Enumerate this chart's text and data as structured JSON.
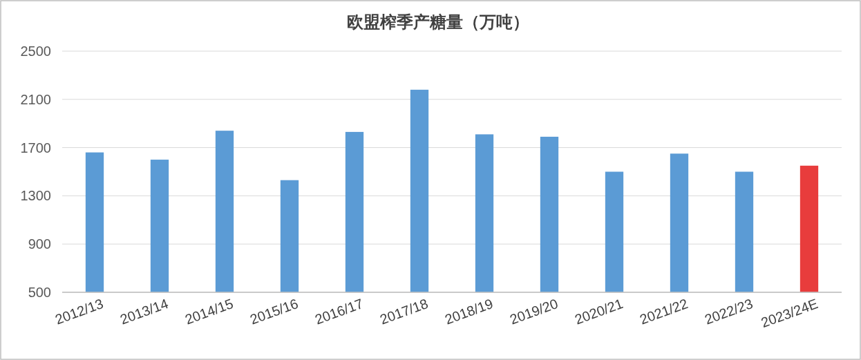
{
  "chart_data": {
    "type": "bar",
    "title": "欧盟榨季产糖量（万吨）",
    "categories": [
      "2012/13",
      "2013/14",
      "2014/15",
      "2015/16",
      "2016/17",
      "2017/18",
      "2018/19",
      "2019/20",
      "2020/21",
      "2021/22",
      "2022/23",
      "2023/24E"
    ],
    "values": [
      1660,
      1600,
      1840,
      1430,
      1830,
      2180,
      1810,
      1790,
      1500,
      1650,
      1500,
      1550
    ],
    "colors": [
      "#5b9bd5",
      "#5b9bd5",
      "#5b9bd5",
      "#5b9bd5",
      "#5b9bd5",
      "#5b9bd5",
      "#5b9bd5",
      "#5b9bd5",
      "#5b9bd5",
      "#5b9bd5",
      "#5b9bd5",
      "#e83c3c"
    ],
    "ylim": [
      500,
      2500
    ],
    "yticks": [
      500,
      900,
      1300,
      1700,
      2100,
      2500
    ],
    "grid": "y"
  }
}
